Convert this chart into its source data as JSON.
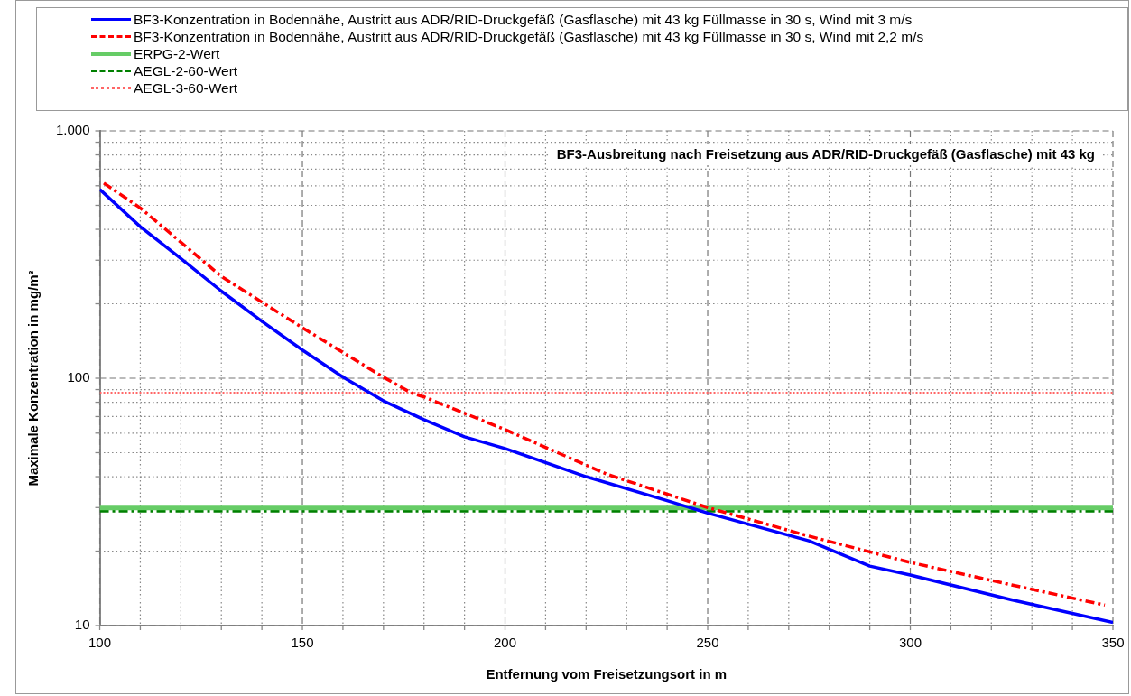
{
  "chart_data": {
    "type": "line",
    "title": "BF3-Ausbreitung nach Freisetzung aus ADR/RID-Druckgefäß (Gasflasche) mit 43 kg",
    "xlabel": "Entfernung vom Freisetzungsort in m",
    "ylabel": "Maximale Konzentration in mg/m³",
    "log": "y",
    "grid": true,
    "legend": "top",
    "marker": "none",
    "xlim": [
      100,
      350
    ],
    "ylim": [
      10,
      1000
    ],
    "xticks": [
      100,
      {
        "value": 110,
        "label": null
      },
      {
        "value": 120,
        "label": null
      },
      {
        "value": 130,
        "label": null
      },
      {
        "value": 140,
        "label": null
      },
      150,
      {
        "value": 160,
        "label": null
      },
      {
        "value": 170,
        "label": null
      },
      {
        "value": 180,
        "label": null
      },
      {
        "value": 190,
        "label": null
      },
      200,
      {
        "value": 210,
        "label": null
      },
      {
        "value": 220,
        "label": null
      },
      {
        "value": 230,
        "label": null
      },
      {
        "value": 240,
        "label": null
      },
      250,
      {
        "value": 260,
        "label": null
      },
      {
        "value": 270,
        "label": null
      },
      {
        "value": 280,
        "label": null
      },
      {
        "value": 290,
        "label": null
      },
      300,
      {
        "value": 310,
        "label": null
      },
      {
        "value": 320,
        "label": null
      },
      {
        "value": 330,
        "label": null
      },
      {
        "value": 340,
        "label": null
      },
      350
    ],
    "yticks": [
      10,
      {
        "value": 20,
        "label": null
      },
      {
        "value": 30,
        "label": null
      },
      {
        "value": 40,
        "label": null
      },
      {
        "value": 50,
        "label": null
      },
      {
        "value": 60,
        "label": null
      },
      {
        "value": 70,
        "label": null
      },
      {
        "value": 80,
        "label": null
      },
      {
        "value": 90,
        "label": null
      },
      100,
      {
        "value": 200,
        "label": null
      },
      {
        "value": 300,
        "label": null
      },
      {
        "value": 400,
        "label": null
      },
      {
        "value": 500,
        "label": null
      },
      {
        "value": 600,
        "label": null
      },
      {
        "value": 700,
        "label": null
      },
      {
        "value": 800,
        "label": null
      },
      {
        "value": 900,
        "label": null
      },
      {
        "value": 1000,
        "label": "1.000"
      }
    ],
    "series": [
      {
        "name": "BF3-Konzentration in Bodennähe, Austritt aus ADR/RID-Druckgefäß (Gasflasche) mit 43 kg Füllmasse in 30 s, Wind mit 3 m/s",
        "color": "#0000ff",
        "line_style": "solid",
        "x": [
          100,
          110,
          120,
          130,
          140,
          150,
          160,
          170,
          180,
          190,
          200,
          220,
          240,
          250,
          275,
          290,
          300,
          325,
          350
        ],
        "values": [
          580,
          410,
          305,
          225,
          170,
          130,
          101,
          81,
          68,
          58,
          52,
          40,
          32,
          28.5,
          22,
          17.4,
          16,
          12.7,
          10.3
        ]
      },
      {
        "name": "BF3-Konzentration in Bodennähe, Austritt aus ADR/RID-Druckgefäß (Gasflasche) mit 43 kg Füllmasse in 30 s, Wind mit 2,2 m/s",
        "color": "#ff0000",
        "line_style": "dashed",
        "x": [
          101,
          110,
          130,
          150,
          170,
          177,
          180,
          200,
          225,
          250,
          275,
          300,
          325,
          348
        ],
        "values": [
          615,
          488,
          258,
          160,
          101,
          87,
          84,
          62,
          41,
          30,
          23,
          18,
          14.6,
          12.1
        ]
      },
      {
        "name": "ERPG-2-Wert",
        "color": "#66cc66",
        "line_style": "solid",
        "x": [
          100,
          350
        ],
        "values": [
          30,
          30
        ]
      },
      {
        "name": "AEGL-2-60-Wert",
        "color": "#008000",
        "line_style": "dashed",
        "x": [
          100,
          350
        ],
        "values": [
          29,
          29
        ]
      },
      {
        "name": "AEGL-3-60-Wert",
        "color": "#ff6666",
        "line_style": "dotted",
        "x": [
          100,
          350
        ],
        "values": [
          87,
          87
        ]
      }
    ]
  }
}
